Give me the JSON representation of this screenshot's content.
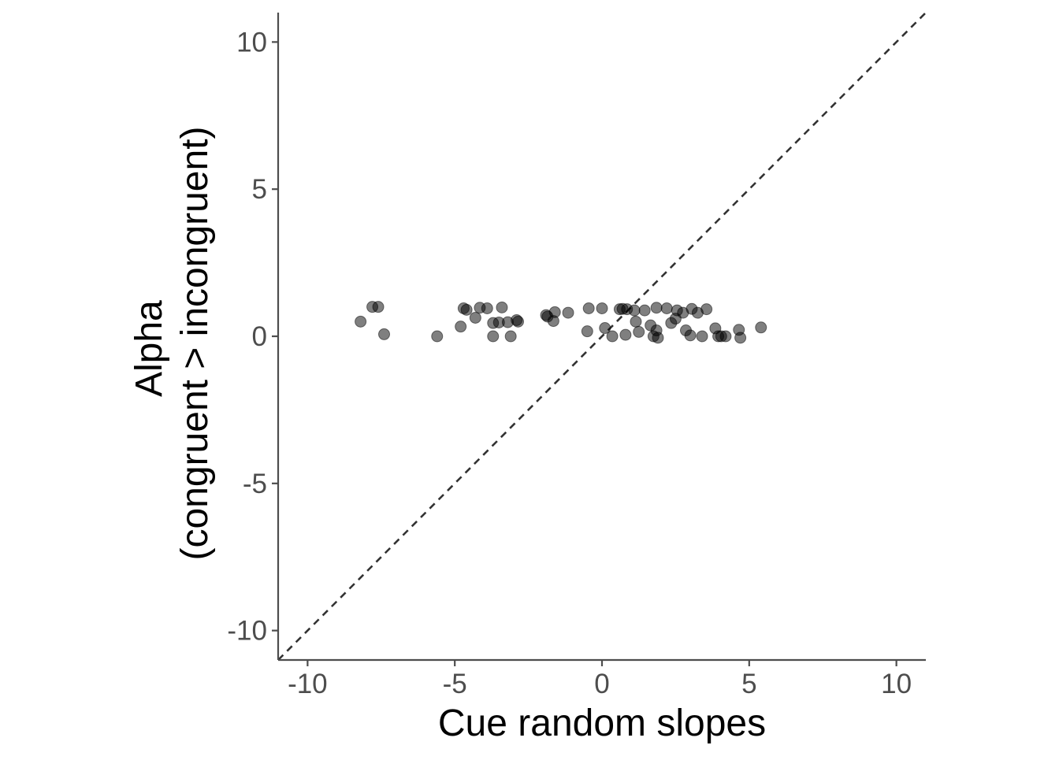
{
  "chart_data": {
    "type": "scatter",
    "title": "",
    "xlabel": "Cue random slopes",
    "ylabel_lines": [
      "Alpha",
      "(congruent > incongruent)"
    ],
    "xlim": [
      -11,
      11
    ],
    "ylim": [
      -11,
      11
    ],
    "x_ticks": [
      -10,
      -5,
      0,
      5,
      10
    ],
    "y_ticks": [
      -10,
      -5,
      0,
      5,
      10
    ],
    "x_tick_labels": [
      "-10",
      "-5",
      "0",
      "5",
      "10"
    ],
    "y_tick_labels": [
      "-10",
      "-5",
      "0",
      "5",
      "10"
    ],
    "grid": false,
    "legend": "none",
    "reference_line": {
      "type": "identity",
      "slope": 1,
      "intercept": 0,
      "style": "dashed"
    },
    "point_color": "#000000",
    "point_opacity": 0.5,
    "series": [
      {
        "points": [
          {
            "x": -8.2,
            "y": 0.5
          },
          {
            "x": -7.8,
            "y": 1.0
          },
          {
            "x": -7.6,
            "y": 1.0
          },
          {
            "x": -7.4,
            "y": 0.07
          },
          {
            "x": -5.6,
            "y": 0.0
          },
          {
            "x": -4.8,
            "y": 0.33
          },
          {
            "x": -4.7,
            "y": 0.95
          },
          {
            "x": -4.6,
            "y": 0.9
          },
          {
            "x": -4.3,
            "y": 0.63
          },
          {
            "x": -4.15,
            "y": 0.97
          },
          {
            "x": -3.9,
            "y": 0.95
          },
          {
            "x": -3.7,
            "y": 0.45
          },
          {
            "x": -3.7,
            "y": 0.0
          },
          {
            "x": -3.5,
            "y": 0.47
          },
          {
            "x": -3.4,
            "y": 0.98
          },
          {
            "x": -3.2,
            "y": 0.48
          },
          {
            "x": -3.1,
            "y": 0.0
          },
          {
            "x": -2.9,
            "y": 0.55
          },
          {
            "x": -2.85,
            "y": 0.5
          },
          {
            "x": -1.9,
            "y": 0.72
          },
          {
            "x": -1.85,
            "y": 0.67
          },
          {
            "x": -1.65,
            "y": 0.52
          },
          {
            "x": -1.6,
            "y": 0.82
          },
          {
            "x": -1.15,
            "y": 0.8
          },
          {
            "x": -0.5,
            "y": 0.17
          },
          {
            "x": -0.45,
            "y": 0.95
          },
          {
            "x": 0.0,
            "y": 0.95
          },
          {
            "x": 0.1,
            "y": 0.28
          },
          {
            "x": 0.35,
            "y": 0.0
          },
          {
            "x": 0.6,
            "y": 0.92
          },
          {
            "x": 0.7,
            "y": 0.93
          },
          {
            "x": 0.8,
            "y": 0.05
          },
          {
            "x": 0.85,
            "y": 0.92
          },
          {
            "x": 1.1,
            "y": 0.88
          },
          {
            "x": 1.15,
            "y": 0.5
          },
          {
            "x": 1.25,
            "y": 0.15
          },
          {
            "x": 1.45,
            "y": 0.88
          },
          {
            "x": 1.65,
            "y": 0.37
          },
          {
            "x": 1.75,
            "y": 0.0
          },
          {
            "x": 1.85,
            "y": 0.97
          },
          {
            "x": 1.85,
            "y": 0.2
          },
          {
            "x": 1.9,
            "y": -0.05
          },
          {
            "x": 2.2,
            "y": 0.95
          },
          {
            "x": 2.35,
            "y": 0.45
          },
          {
            "x": 2.5,
            "y": 0.6
          },
          {
            "x": 2.55,
            "y": 0.88
          },
          {
            "x": 2.75,
            "y": 0.8
          },
          {
            "x": 2.85,
            "y": 0.2
          },
          {
            "x": 3.0,
            "y": 0.03
          },
          {
            "x": 3.05,
            "y": 0.93
          },
          {
            "x": 3.25,
            "y": 0.8
          },
          {
            "x": 3.4,
            "y": 0.0
          },
          {
            "x": 3.55,
            "y": 0.92
          },
          {
            "x": 3.85,
            "y": 0.27
          },
          {
            "x": 3.95,
            "y": 0.0
          },
          {
            "x": 4.05,
            "y": 0.0
          },
          {
            "x": 4.2,
            "y": 0.0
          },
          {
            "x": 4.65,
            "y": 0.22
          },
          {
            "x": 4.7,
            "y": -0.05
          },
          {
            "x": 5.4,
            "y": 0.3
          }
        ]
      }
    ]
  }
}
